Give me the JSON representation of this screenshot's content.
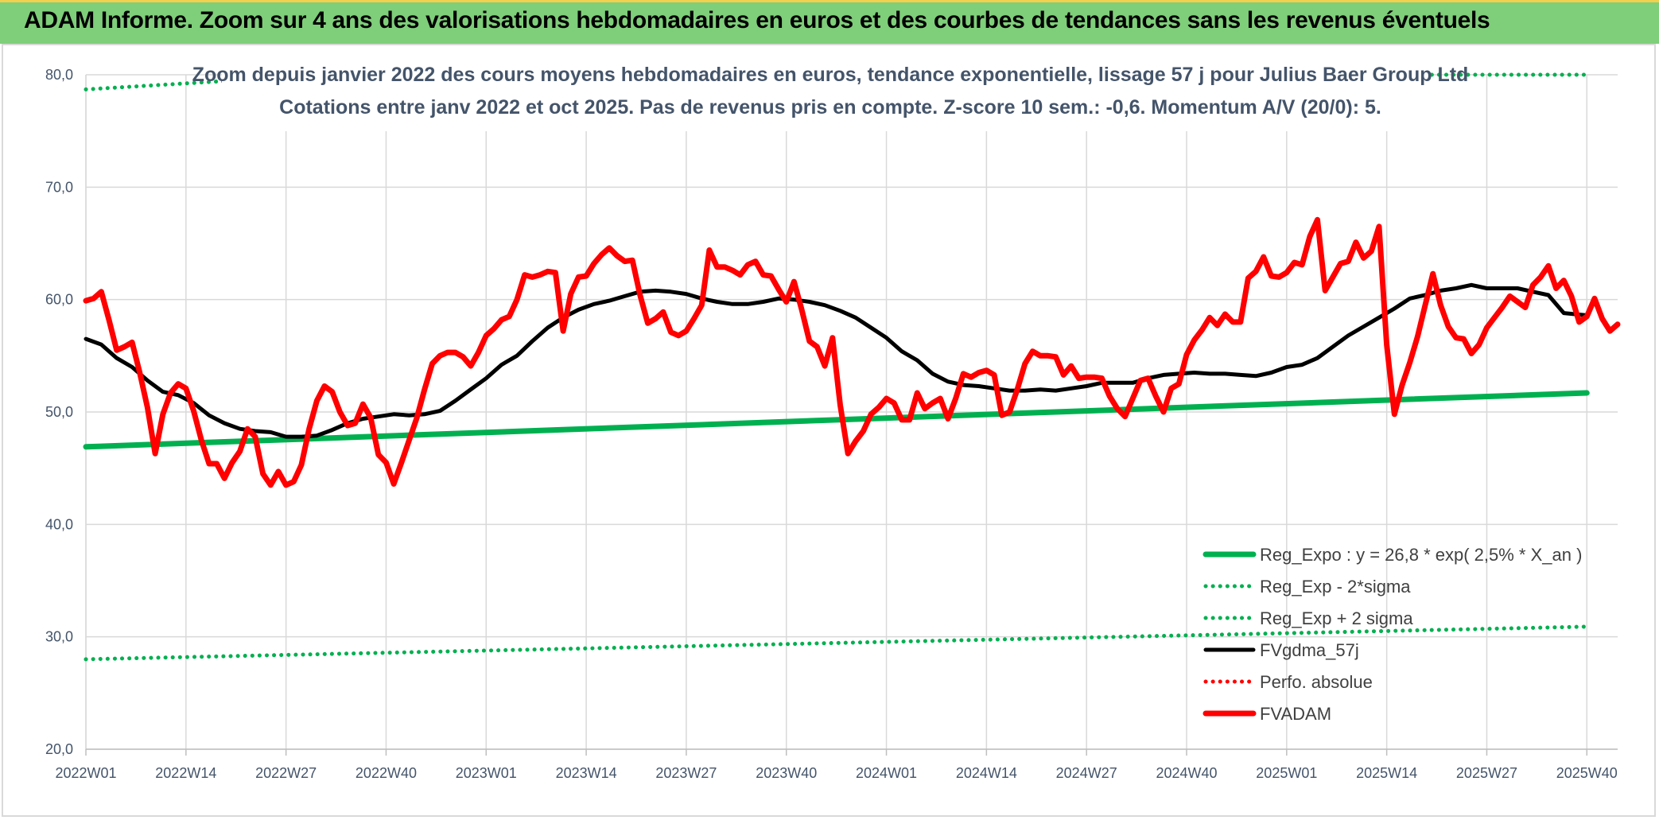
{
  "header": {
    "title": "ADAM Informe. Zoom sur 4 ans des valorisations hebdomadaires en euros et des courbes de tendances sans les revenus éventuels"
  },
  "colors": {
    "header_bg": "#7fce7a",
    "header_border": "#f3d04d",
    "green": "#00b050",
    "red": "#ff0000",
    "black": "#000000",
    "axis_text": "#44546a"
  },
  "chart_data": {
    "type": "line",
    "title": "Zoom depuis janvier 2022 des cours moyens hebdomadaires en euros, tendance exponentielle, lissage 57 j pour Julius Baer Group Ltd",
    "subtitle": "Cotations entre janv 2022 et oct 2025. Pas de revenus pris en compte. Z-score 10 sem.: -0,6. Momentum A/V (20/0): 5.",
    "x_tick_labels": [
      "2022W01",
      "2022W14",
      "2022W27",
      "2022W40",
      "2023W01",
      "2023W14",
      "2023W27",
      "2023W40",
      "2024W01",
      "2024W14",
      "2024W27",
      "2024W40",
      "2025W01",
      "2025W14",
      "2025W27",
      "2025W40"
    ],
    "y_tick_labels": [
      "20,0",
      "30,0",
      "40,0",
      "50,0",
      "60,0",
      "70,0",
      "80,0"
    ],
    "ylim": [
      20,
      80
    ],
    "grid": true,
    "legend_position": "bottom-right",
    "series": [
      {
        "name": "Reg_Expo : y = 26,8 * exp( 2,5% *  X_an )",
        "style": "solid-thick",
        "color": "#00b050",
        "points": [
          [
            0,
            46.9
          ],
          [
            195,
            51.7
          ]
        ]
      },
      {
        "name": "Reg_Exp - 2*sigma",
        "style": "dotted",
        "color": "#00b050",
        "points": [
          [
            0,
            28.0
          ],
          [
            195,
            30.9
          ]
        ]
      },
      {
        "name": "Reg_Exp + 2 sigma",
        "style": "dotted",
        "color": "#00b050",
        "points": [
          [
            0,
            78.7
          ],
          [
            17,
            79.4
          ],
          [
            170,
            80.0
          ],
          [
            195,
            80.0
          ]
        ]
      },
      {
        "name": "FVgdma_57j",
        "style": "solid",
        "color": "#000000",
        "points": [
          [
            0,
            56.5
          ],
          [
            2,
            56.0
          ],
          [
            4,
            54.8
          ],
          [
            6,
            54.0
          ],
          [
            8,
            52.8
          ],
          [
            10,
            51.8
          ],
          [
            12,
            51.5
          ],
          [
            14,
            50.8
          ],
          [
            16,
            49.7
          ],
          [
            18,
            49.0
          ],
          [
            20,
            48.5
          ],
          [
            22,
            48.3
          ],
          [
            24,
            48.2
          ],
          [
            26,
            47.8
          ],
          [
            28,
            47.8
          ],
          [
            30,
            47.9
          ],
          [
            32,
            48.4
          ],
          [
            34,
            49.0
          ],
          [
            36,
            49.4
          ],
          [
            38,
            49.6
          ],
          [
            40,
            49.8
          ],
          [
            42,
            49.7
          ],
          [
            44,
            49.8
          ],
          [
            46,
            50.1
          ],
          [
            48,
            51.0
          ],
          [
            50,
            52.0
          ],
          [
            52,
            53.0
          ],
          [
            54,
            54.2
          ],
          [
            56,
            55.0
          ],
          [
            58,
            56.3
          ],
          [
            60,
            57.5
          ],
          [
            62,
            58.4
          ],
          [
            64,
            59.1
          ],
          [
            66,
            59.6
          ],
          [
            68,
            59.9
          ],
          [
            70,
            60.3
          ],
          [
            72,
            60.7
          ],
          [
            74,
            60.8
          ],
          [
            76,
            60.7
          ],
          [
            78,
            60.5
          ],
          [
            80,
            60.1
          ],
          [
            82,
            59.8
          ],
          [
            84,
            59.6
          ],
          [
            86,
            59.6
          ],
          [
            88,
            59.8
          ],
          [
            90,
            60.1
          ],
          [
            92,
            60.0
          ],
          [
            94,
            59.8
          ],
          [
            96,
            59.5
          ],
          [
            98,
            59.0
          ],
          [
            100,
            58.4
          ],
          [
            102,
            57.5
          ],
          [
            104,
            56.6
          ],
          [
            106,
            55.4
          ],
          [
            108,
            54.6
          ],
          [
            110,
            53.4
          ],
          [
            112,
            52.7
          ],
          [
            114,
            52.4
          ],
          [
            116,
            52.3
          ],
          [
            118,
            52.1
          ],
          [
            120,
            51.9
          ],
          [
            122,
            51.9
          ],
          [
            124,
            52.0
          ],
          [
            126,
            51.9
          ],
          [
            128,
            52.1
          ],
          [
            130,
            52.3
          ],
          [
            132,
            52.6
          ],
          [
            134,
            52.6
          ],
          [
            136,
            52.6
          ],
          [
            138,
            53.0
          ],
          [
            140,
            53.3
          ],
          [
            142,
            53.4
          ],
          [
            144,
            53.5
          ],
          [
            146,
            53.4
          ],
          [
            148,
            53.4
          ],
          [
            150,
            53.3
          ],
          [
            152,
            53.2
          ],
          [
            154,
            53.5
          ],
          [
            156,
            54.0
          ],
          [
            158,
            54.2
          ],
          [
            160,
            54.8
          ],
          [
            162,
            55.8
          ],
          [
            164,
            56.8
          ],
          [
            166,
            57.6
          ],
          [
            168,
            58.4
          ],
          [
            170,
            59.2
          ],
          [
            172,
            60.1
          ],
          [
            174,
            60.4
          ],
          [
            176,
            60.8
          ],
          [
            178,
            61.0
          ],
          [
            180,
            61.3
          ],
          [
            182,
            61.0
          ],
          [
            184,
            61.0
          ],
          [
            186,
            61.0
          ],
          [
            188,
            60.7
          ],
          [
            190,
            60.4
          ],
          [
            192,
            58.8
          ],
          [
            195,
            58.6
          ]
        ]
      },
      {
        "name": "Perfo. absolue",
        "style": "dotted",
        "color": "#ff0000",
        "points": []
      },
      {
        "name": "FVADAM",
        "style": "solid-thick",
        "color": "#ff0000",
        "points": [
          [
            0,
            59.9
          ],
          [
            1,
            60.1
          ],
          [
            2,
            60.7
          ],
          [
            3,
            58.2
          ],
          [
            4,
            55.5
          ],
          [
            5,
            55.8
          ],
          [
            6,
            56.2
          ],
          [
            7,
            53.5
          ],
          [
            8,
            50.4
          ],
          [
            9,
            46.3
          ],
          [
            10,
            49.8
          ],
          [
            11,
            51.7
          ],
          [
            12,
            52.5
          ],
          [
            13,
            52.1
          ],
          [
            14,
            50.1
          ],
          [
            15,
            47.5
          ],
          [
            16,
            45.4
          ],
          [
            17,
            45.4
          ],
          [
            18,
            44.1
          ],
          [
            19,
            45.5
          ],
          [
            20,
            46.5
          ],
          [
            21,
            48.5
          ],
          [
            22,
            47.8
          ],
          [
            23,
            44.5
          ],
          [
            24,
            43.5
          ],
          [
            25,
            44.7
          ],
          [
            26,
            43.5
          ],
          [
            27,
            43.8
          ],
          [
            28,
            45.3
          ],
          [
            29,
            48.5
          ],
          [
            30,
            51.0
          ],
          [
            31,
            52.3
          ],
          [
            32,
            51.8
          ],
          [
            33,
            50.0
          ],
          [
            34,
            48.8
          ],
          [
            35,
            49.0
          ],
          [
            36,
            50.7
          ],
          [
            37,
            49.5
          ],
          [
            38,
            46.2
          ],
          [
            39,
            45.5
          ],
          [
            40,
            43.6
          ],
          [
            41,
            45.5
          ],
          [
            42,
            47.5
          ],
          [
            43,
            49.5
          ],
          [
            44,
            52.0
          ],
          [
            45,
            54.3
          ],
          [
            46,
            55.0
          ],
          [
            47,
            55.3
          ],
          [
            48,
            55.3
          ],
          [
            49,
            54.9
          ],
          [
            50,
            54.1
          ],
          [
            51,
            55.3
          ],
          [
            52,
            56.8
          ],
          [
            53,
            57.4
          ],
          [
            54,
            58.2
          ],
          [
            55,
            58.5
          ],
          [
            56,
            60.0
          ],
          [
            57,
            62.2
          ],
          [
            58,
            62.0
          ],
          [
            59,
            62.2
          ],
          [
            60,
            62.5
          ],
          [
            61,
            62.4
          ],
          [
            62,
            57.2
          ],
          [
            63,
            60.5
          ],
          [
            64,
            62.0
          ],
          [
            65,
            62.1
          ],
          [
            66,
            63.2
          ],
          [
            67,
            64.0
          ],
          [
            68,
            64.6
          ],
          [
            69,
            63.9
          ],
          [
            70,
            63.4
          ],
          [
            71,
            63.5
          ],
          [
            72,
            60.4
          ],
          [
            73,
            57.9
          ],
          [
            74,
            58.3
          ],
          [
            75,
            58.9
          ],
          [
            76,
            57.1
          ],
          [
            77,
            56.8
          ],
          [
            78,
            57.2
          ],
          [
            79,
            58.3
          ],
          [
            80,
            59.5
          ],
          [
            81,
            64.4
          ],
          [
            82,
            62.9
          ],
          [
            83,
            62.9
          ],
          [
            84,
            62.6
          ],
          [
            85,
            62.2
          ],
          [
            86,
            63.1
          ],
          [
            87,
            63.4
          ],
          [
            88,
            62.2
          ],
          [
            89,
            62.1
          ],
          [
            90,
            60.9
          ],
          [
            91,
            59.8
          ],
          [
            92,
            61.6
          ],
          [
            93,
            59.1
          ],
          [
            94,
            56.3
          ],
          [
            95,
            55.8
          ],
          [
            96,
            54.1
          ],
          [
            97,
            56.6
          ],
          [
            98,
            50.6
          ],
          [
            99,
            46.3
          ],
          [
            100,
            47.4
          ],
          [
            101,
            48.3
          ],
          [
            102,
            49.8
          ],
          [
            103,
            50.4
          ],
          [
            104,
            51.2
          ],
          [
            105,
            50.8
          ],
          [
            106,
            49.3
          ],
          [
            107,
            49.3
          ],
          [
            108,
            51.7
          ],
          [
            109,
            50.3
          ],
          [
            110,
            50.8
          ],
          [
            111,
            51.2
          ],
          [
            112,
            49.4
          ],
          [
            113,
            51.2
          ],
          [
            114,
            53.4
          ],
          [
            115,
            53.1
          ],
          [
            116,
            53.5
          ],
          [
            117,
            53.7
          ],
          [
            118,
            53.3
          ],
          [
            119,
            49.7
          ],
          [
            120,
            50.0
          ],
          [
            121,
            52.0
          ],
          [
            122,
            54.3
          ],
          [
            123,
            55.4
          ],
          [
            124,
            55.0
          ],
          [
            125,
            55.0
          ],
          [
            126,
            54.9
          ],
          [
            127,
            53.3
          ],
          [
            128,
            54.1
          ],
          [
            129,
            53.0
          ],
          [
            130,
            53.1
          ],
          [
            131,
            53.1
          ],
          [
            132,
            53.0
          ],
          [
            133,
            51.4
          ],
          [
            134,
            50.3
          ],
          [
            135,
            49.6
          ],
          [
            136,
            51.2
          ],
          [
            137,
            52.8
          ],
          [
            138,
            53.0
          ],
          [
            139,
            51.4
          ],
          [
            140,
            50.0
          ],
          [
            141,
            52.1
          ],
          [
            142,
            52.5
          ],
          [
            143,
            55.1
          ],
          [
            144,
            56.4
          ],
          [
            145,
            57.3
          ],
          [
            146,
            58.4
          ],
          [
            147,
            57.7
          ],
          [
            148,
            58.7
          ],
          [
            149,
            58.0
          ],
          [
            150,
            58.0
          ],
          [
            151,
            61.9
          ],
          [
            152,
            62.5
          ],
          [
            153,
            63.8
          ],
          [
            154,
            62.1
          ],
          [
            155,
            62.0
          ],
          [
            156,
            62.4
          ],
          [
            157,
            63.3
          ],
          [
            158,
            63.1
          ],
          [
            159,
            65.6
          ],
          [
            160,
            67.1
          ],
          [
            161,
            60.8
          ],
          [
            162,
            62.0
          ],
          [
            163,
            63.2
          ],
          [
            164,
            63.4
          ],
          [
            165,
            65.1
          ],
          [
            166,
            63.7
          ],
          [
            167,
            64.3
          ],
          [
            168,
            66.5
          ],
          [
            169,
            56.0
          ],
          [
            170,
            49.8
          ],
          [
            171,
            52.4
          ],
          [
            172,
            54.4
          ],
          [
            173,
            56.7
          ],
          [
            174,
            59.5
          ],
          [
            175,
            62.3
          ],
          [
            176,
            59.5
          ],
          [
            177,
            57.6
          ],
          [
            178,
            56.6
          ],
          [
            179,
            56.5
          ],
          [
            180,
            55.2
          ],
          [
            181,
            56.0
          ],
          [
            182,
            57.5
          ],
          [
            183,
            58.4
          ],
          [
            184,
            59.3
          ],
          [
            185,
            60.3
          ],
          [
            186,
            59.8
          ],
          [
            187,
            59.3
          ],
          [
            188,
            61.3
          ],
          [
            189,
            62.0
          ],
          [
            190,
            63.0
          ],
          [
            191,
            61.0
          ],
          [
            192,
            61.7
          ],
          [
            193,
            60.3
          ],
          [
            194,
            58.0
          ],
          [
            195,
            58.5
          ],
          [
            196,
            60.1
          ],
          [
            197,
            58.3
          ],
          [
            198,
            57.2
          ],
          [
            199,
            57.8
          ]
        ]
      }
    ]
  }
}
